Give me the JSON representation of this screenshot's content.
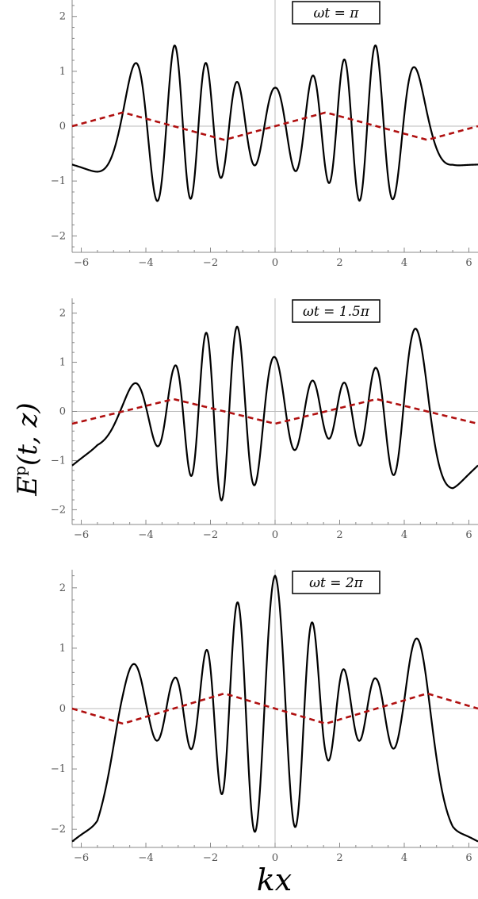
{
  "figure": {
    "ylabel": "E^p(t, z)",
    "ylabel_main": "E",
    "ylabel_sup": "p",
    "ylabel_args": "(t, z)",
    "xlabel": "kx"
  },
  "colors": {
    "solid_series": "#000000",
    "dashed_series": "#b01010",
    "axis_zero_lines": "#bbbbbb",
    "frame": "#888888"
  },
  "chart_data": [
    {
      "type": "line",
      "panel_label": "ωt = π",
      "xlim": [
        -6.283,
        6.283
      ],
      "ylim": [
        -2.3,
        2.3
      ],
      "x_ticks": [
        -6,
        -4,
        -2,
        0,
        2,
        4,
        6
      ],
      "x_tick_labels": [
        "−6",
        "−4",
        "−2",
        "0",
        "2",
        "4",
        "6"
      ],
      "y_ticks": [
        -2,
        -1,
        0,
        1,
        2
      ],
      "y_tick_labels": [
        "−2",
        "−1",
        "0",
        "1",
        "2"
      ],
      "grid": false,
      "series": [
        {
          "style": "solid",
          "color": "#000000",
          "x": [
            -6.28,
            -5.5,
            -4.71,
            -3.93,
            -3.14,
            -2.36,
            -1.57,
            -0.79,
            0,
            0.79,
            1.57,
            2.36,
            3.14,
            3.93,
            4.71,
            5.5,
            6.28
          ],
          "envelope": [
            0.7,
            0.85,
            1.0,
            1.3,
            1.48,
            1.25,
            0.9,
            0.72,
            0.7,
            0.85,
            1.0,
            1.3,
            1.48,
            1.25,
            0.9,
            0.72,
            0.7
          ]
        },
        {
          "style": "dashed",
          "color": "#b01010",
          "x": [
            -6.28,
            -4.71,
            -3.14,
            -1.57,
            0,
            1.57,
            3.14,
            4.71,
            6.28
          ],
          "y": [
            0,
            0.25,
            0,
            -0.25,
            0,
            0.25,
            0,
            -0.25,
            0
          ]
        }
      ]
    },
    {
      "type": "line",
      "panel_label": "ωt = 1.5π",
      "xlim": [
        -6.283,
        6.283
      ],
      "ylim": [
        -2.3,
        2.3
      ],
      "x_ticks": [
        -6,
        -4,
        -2,
        0,
        2,
        4,
        6
      ],
      "x_tick_labels": [
        "−6",
        "−4",
        "−2",
        "0",
        "2",
        "4",
        "6"
      ],
      "y_ticks": [
        -2,
        -1,
        0,
        1,
        2
      ],
      "y_tick_labels": [
        "−2",
        "−1",
        "0",
        "1",
        "2"
      ],
      "grid": false,
      "series": [
        {
          "style": "solid",
          "color": "#000000",
          "x": [
            -6.28,
            -5.5,
            -4.71,
            -3.93,
            -3.14,
            -2.36,
            -1.57,
            -0.79,
            0,
            0.79,
            1.57,
            2.36,
            3.14,
            3.93,
            4.71,
            5.5,
            6.28
          ],
          "envelope": [
            1.1,
            0.7,
            0.55,
            0.6,
            0.9,
            1.5,
            1.85,
            1.6,
            1.1,
            0.7,
            0.55,
            0.6,
            0.9,
            1.5,
            1.85,
            1.6,
            1.1
          ]
        },
        {
          "style": "dashed",
          "color": "#b01010",
          "x": [
            -6.28,
            -4.71,
            -3.14,
            -1.57,
            0,
            1.57,
            3.14,
            4.71,
            6.28
          ],
          "y": [
            -0.25,
            0,
            0.25,
            0,
            -0.25,
            0,
            0.25,
            0,
            -0.25
          ]
        }
      ]
    },
    {
      "type": "line",
      "panel_label": "ωt = 2π",
      "xlim": [
        -6.283,
        6.283
      ],
      "ylim": [
        -2.3,
        2.3
      ],
      "x_ticks": [
        -6,
        -4,
        -2,
        0,
        2,
        4,
        6
      ],
      "x_tick_labels": [
        "−6",
        "−4",
        "−2",
        "0",
        "2",
        "4",
        "6"
      ],
      "y_ticks": [
        -2,
        -1,
        0,
        1,
        2
      ],
      "y_tick_labels": [
        "−2",
        "−1",
        "0",
        "1",
        "2"
      ],
      "grid": false,
      "series": [
        {
          "style": "solid",
          "color": "#000000",
          "x": [
            -6.28,
            -5.5,
            -4.71,
            -3.93,
            -3.14,
            -2.36,
            -1.57,
            -0.79,
            0,
            0.79,
            1.57,
            2.36,
            3.14,
            3.93,
            4.71,
            5.5,
            6.28
          ],
          "envelope": [
            2.2,
            1.9,
            0.9,
            0.55,
            0.5,
            0.75,
            1.5,
            2.0,
            2.2,
            1.9,
            0.9,
            0.55,
            0.5,
            0.75,
            1.5,
            2.0,
            2.2
          ]
        },
        {
          "style": "dashed",
          "color": "#b01010",
          "x": [
            -6.28,
            -4.71,
            -3.14,
            -1.57,
            0,
            1.57,
            3.14,
            4.71,
            6.28
          ],
          "y": [
            0,
            -0.25,
            0,
            0.25,
            0,
            -0.25,
            0,
            0.25,
            0
          ]
        }
      ]
    }
  ]
}
